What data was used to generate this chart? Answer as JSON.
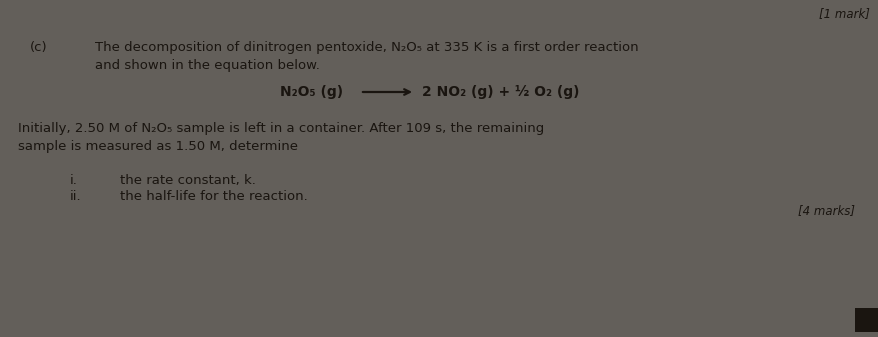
{
  "bg_color": "#635f5a",
  "top_right_text": "[1 mark]",
  "label_c": "(c)",
  "line1": "The decomposition of dinitrogen pentoxide, N₂O₅ at 335 K is a first order reaction",
  "line2": "and shown in the equation below.",
  "equation_left": "N₂O₅ (g)",
  "equation_right": "2 NO₂ (g) + ½ O₂ (g)",
  "para_line1": "Initially, 2.50 M of N₂O₅ sample is left in a container. After 109 s, the remaining",
  "para_line2": "sample is measured as 1.50 M, determine",
  "item_i_label": "i.",
  "item_i_text": "the rate constant, k.",
  "item_ii_label": "ii.",
  "item_ii_text": "the half-life for the reaction.",
  "marks_text": "[4 marks]",
  "font_size_body": 9.5,
  "font_size_equation": 10,
  "font_size_marks": 8.5,
  "text_color": "#1a1510"
}
